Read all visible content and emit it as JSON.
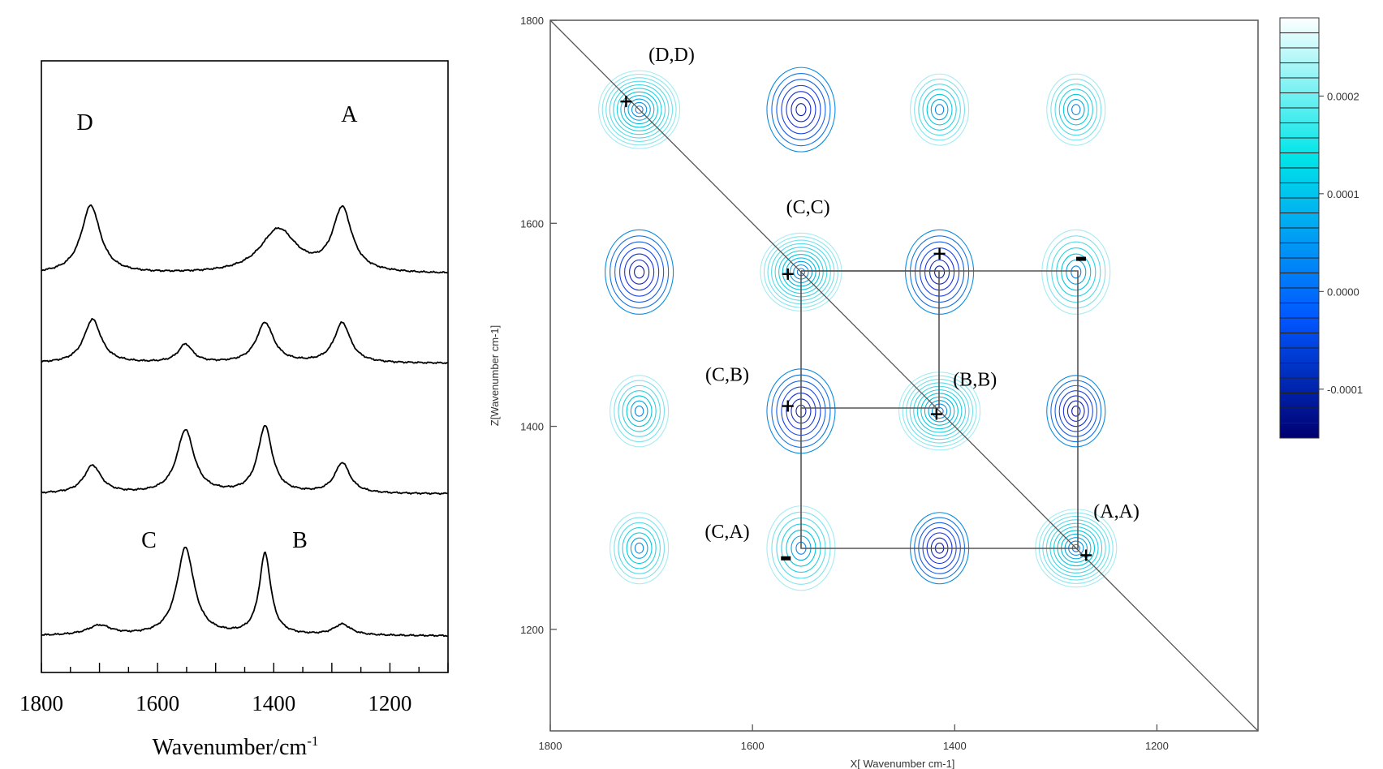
{
  "chart_data": [
    {
      "type": "line",
      "panel": "1D spectra (stacked)",
      "title": "",
      "xlabel": "Wavenumber/cm",
      "xlabel_sup": "-1",
      "ylabel": "",
      "xlim": [
        1800,
        1100
      ],
      "x_ticks": [
        1800,
        1600,
        1400,
        1200
      ],
      "x_tick_labels": [
        "1800",
        "1600",
        "1400",
        "1200"
      ],
      "peak_labels": [
        {
          "text": "D",
          "x": 1725
        },
        {
          "text": "A",
          "x": 1270
        },
        {
          "text": "C",
          "x": 1615
        },
        {
          "text": "B",
          "x": 1355
        }
      ],
      "series": [
        {
          "peaks": [
            {
              "x": 1715,
              "a": 0.56,
              "w": 20
            },
            {
              "x": 1392,
              "a": 0.36,
              "w": 38
            },
            {
              "x": 1282,
              "a": 0.52,
              "w": 20
            }
          ]
        },
        {
          "peaks": [
            {
              "x": 1712,
              "a": 0.36,
              "w": 18
            },
            {
              "x": 1552,
              "a": 0.15,
              "w": 15
            },
            {
              "x": 1415,
              "a": 0.33,
              "w": 18
            },
            {
              "x": 1282,
              "a": 0.33,
              "w": 17
            }
          ]
        },
        {
          "peaks": [
            {
              "x": 1712,
              "a": 0.23,
              "w": 18
            },
            {
              "x": 1552,
              "a": 0.52,
              "w": 18
            },
            {
              "x": 1415,
              "a": 0.55,
              "w": 15
            },
            {
              "x": 1282,
              "a": 0.25,
              "w": 16
            }
          ]
        },
        {
          "peaks": [
            {
              "x": 1700,
              "a": 0.08,
              "w": 25
            },
            {
              "x": 1552,
              "a": 0.72,
              "w": 18
            },
            {
              "x": 1415,
              "a": 0.67,
              "w": 12
            },
            {
              "x": 1282,
              "a": 0.09,
              "w": 18
            }
          ]
        }
      ]
    },
    {
      "type": "heatmap",
      "panel": "2D correlation contour map",
      "xlabel": "X[ Wavenumber cm-1]",
      "ylabel": "Z[Wavenumber cm-1]",
      "xlim": [
        1800,
        1100
      ],
      "ylim": [
        1100,
        1800
      ],
      "x_ticks": [
        1800,
        1600,
        1400,
        1200
      ],
      "y_ticks": [
        1800,
        1600,
        1400,
        1200
      ],
      "tick_labels": [
        "1800",
        "1600",
        "1400",
        "1200"
      ],
      "colorbar": {
        "ticks": [
          "0.0002",
          "0.0001",
          "0.0000",
          "-0.0001"
        ],
        "values": [
          0.0002,
          0.0001,
          0.0,
          -0.0001
        ],
        "range": [
          -0.00015,
          0.00028
        ],
        "colors": [
          "#ffffff",
          "#00e5e8",
          "#0055ff",
          "#000070"
        ]
      },
      "peak_labels": [
        {
          "text": "(D,D)",
          "x": 1680,
          "z": 1760
        },
        {
          "text": "(C,C)",
          "x": 1545,
          "z": 1610
        },
        {
          "text": "(C,B)",
          "x": 1625,
          "z": 1445
        },
        {
          "text": "(B,B)",
          "x": 1380,
          "z": 1440
        },
        {
          "text": "(A,A)",
          "x": 1240,
          "z": 1310
        },
        {
          "text": "(C,A)",
          "x": 1625,
          "z": 1290
        }
      ],
      "signs": [
        {
          "symbol": "+",
          "x": 1725,
          "z": 1720
        },
        {
          "symbol": "+",
          "x": 1565,
          "z": 1550
        },
        {
          "symbol": "+",
          "x": 1415,
          "z": 1570
        },
        {
          "symbol": "-",
          "x": 1275,
          "z": 1565
        },
        {
          "symbol": "+",
          "x": 1565,
          "z": 1420
        },
        {
          "symbol": "+",
          "x": 1418,
          "z": 1412
        },
        {
          "symbol": "-",
          "x": 1567,
          "z": 1270
        },
        {
          "symbol": "+",
          "x": 1270,
          "z": 1273
        }
      ],
      "diagonal_peaks": [
        {
          "x": 1712,
          "z": 1712
        },
        {
          "x": 1552,
          "z": 1552
        },
        {
          "x": 1415,
          "z": 1415
        },
        {
          "x": 1280,
          "z": 1280
        }
      ],
      "cross_peaks": [
        {
          "x": 1552,
          "z": 1712
        },
        {
          "x": 1415,
          "z": 1712
        },
        {
          "x": 1280,
          "z": 1712
        },
        {
          "x": 1712,
          "z": 1552
        },
        {
          "x": 1415,
          "z": 1552
        },
        {
          "x": 1280,
          "z": 1552
        },
        {
          "x": 1712,
          "z": 1415
        },
        {
          "x": 1552,
          "z": 1415
        },
        {
          "x": 1280,
          "z": 1415
        },
        {
          "x": 1712,
          "z": 1280
        },
        {
          "x": 1552,
          "z": 1280
        },
        {
          "x": 1415,
          "z": 1280
        }
      ]
    }
  ]
}
